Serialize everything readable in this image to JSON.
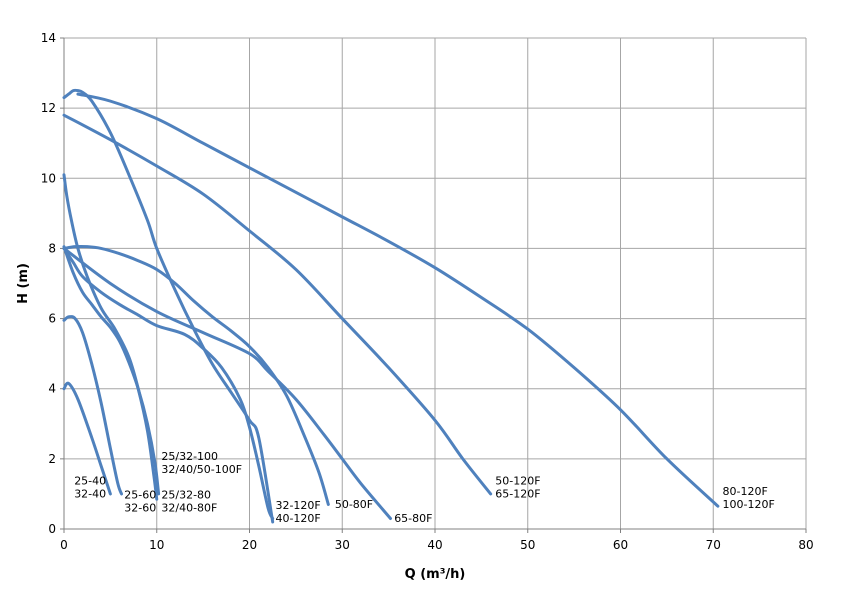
{
  "chart_data": {
    "type": "line",
    "title": "",
    "xlabel": "Q (m³/h)",
    "ylabel": "H (m)",
    "xlim": [
      0,
      80
    ],
    "ylim": [
      0,
      14
    ],
    "x_ticks": [
      0,
      10,
      20,
      30,
      40,
      50,
      60,
      70,
      80
    ],
    "y_ticks": [
      0,
      2,
      4,
      6,
      8,
      10,
      12,
      14
    ],
    "grid": true,
    "line_color": "#4f81bd",
    "series": [
      {
        "x": [
          0,
          0.5,
          1.5,
          3,
          4,
          5
        ],
        "y": [
          4.0,
          4.15,
          3.7,
          2.6,
          1.8,
          1.0
        ]
      },
      {
        "x": [
          0,
          0.5,
          1.2,
          2,
          3,
          4,
          5,
          5.8,
          6.2
        ],
        "y": [
          5.95,
          6.05,
          6.0,
          5.6,
          4.7,
          3.6,
          2.3,
          1.3,
          1.0
        ]
      },
      {
        "x": [
          0,
          1,
          2,
          3,
          4,
          5,
          6,
          7,
          8,
          9,
          9.8,
          10.2
        ],
        "y": [
          8.05,
          7.3,
          6.75,
          6.4,
          6.05,
          5.75,
          5.35,
          4.75,
          4.0,
          3.0,
          1.9,
          1.0
        ]
      },
      {
        "x": [
          0,
          0.3,
          0.8,
          1.5,
          2.5,
          4,
          5.5,
          7,
          8,
          9,
          9.7,
          10.0
        ],
        "y": [
          10.1,
          9.5,
          8.8,
          8.0,
          7.2,
          6.3,
          5.7,
          4.9,
          4.0,
          2.8,
          1.5,
          0.85
        ]
      },
      {
        "x": [
          0,
          1,
          2,
          4,
          6,
          8,
          10,
          13,
          15,
          17,
          19,
          20,
          21,
          22,
          22.5
        ],
        "y": [
          8.0,
          7.6,
          7.2,
          6.75,
          6.4,
          6.1,
          5.8,
          5.55,
          5.15,
          4.6,
          3.7,
          2.9,
          1.8,
          0.6,
          0.3
        ]
      },
      {
        "x": [
          0,
          1.2,
          2.5,
          4,
          6,
          8,
          10,
          12,
          14,
          16,
          18,
          20,
          22,
          24,
          26,
          27.5,
          28.5
        ],
        "y": [
          8.0,
          8.05,
          8.05,
          8.0,
          7.85,
          7.65,
          7.4,
          7.0,
          6.5,
          6.05,
          5.65,
          5.2,
          4.6,
          3.8,
          2.6,
          1.6,
          0.7
        ]
      },
      {
        "x": [
          0,
          0.5,
          1,
          1.5,
          2,
          3,
          5,
          7,
          9,
          10,
          12,
          14,
          16,
          18,
          20,
          21,
          22.5
        ],
        "y": [
          12.3,
          12.4,
          12.5,
          12.5,
          12.45,
          12.2,
          11.3,
          10.1,
          8.8,
          8.0,
          6.8,
          5.7,
          4.7,
          3.9,
          3.1,
          2.6,
          0.2
        ]
      },
      {
        "x": [
          0,
          5,
          10,
          15,
          20,
          22,
          25,
          28,
          30,
          32,
          35.2
        ],
        "y": [
          8.0,
          7.0,
          6.2,
          5.6,
          5.0,
          4.5,
          3.7,
          2.7,
          2.0,
          1.3,
          0.3
        ]
      },
      {
        "x": [
          0,
          5,
          10,
          15,
          20,
          25,
          30,
          35,
          40,
          43,
          46
        ],
        "y": [
          11.8,
          11.1,
          10.35,
          9.55,
          8.5,
          7.4,
          6.0,
          4.6,
          3.1,
          2.0,
          1.0
        ]
      },
      {
        "x": [
          1.5,
          5,
          10,
          15,
          20,
          25,
          30,
          35,
          40,
          45,
          50,
          55,
          60,
          65,
          70.5
        ],
        "y": [
          12.4,
          12.2,
          11.7,
          11.0,
          10.3,
          9.6,
          8.9,
          8.2,
          7.45,
          6.6,
          5.7,
          4.6,
          3.4,
          2.0,
          0.65
        ]
      }
    ],
    "annotations": [
      {
        "lines": [
          "25-40",
          "32-40"
        ],
        "x": 1.1,
        "y": 0.9
      },
      {
        "lines": [
          "25-60",
          "32-60"
        ],
        "x": 6.5,
        "y": 0.5
      },
      {
        "lines": [
          "25/32-100",
          "32/40/50-100F"
        ],
        "x": 10.5,
        "y": 1.6
      },
      {
        "lines": [
          "25/32-80",
          "32/40-80F"
        ],
        "x": 10.5,
        "y": 0.5
      },
      {
        "lines": [
          "32-120F",
          "40-120F"
        ],
        "x": 22.8,
        "y": 0.2
      },
      {
        "lines": [
          "50-80F"
        ],
        "x": 29.2,
        "y": 0.6
      },
      {
        "lines": [
          "65-80F"
        ],
        "x": 35.6,
        "y": 0.2
      },
      {
        "lines": [
          "50-120F",
          "65-120F"
        ],
        "x": 46.5,
        "y": 0.9
      },
      {
        "lines": [
          "80-120F",
          "100-120F"
        ],
        "x": 71.0,
        "y": 0.6
      }
    ]
  }
}
